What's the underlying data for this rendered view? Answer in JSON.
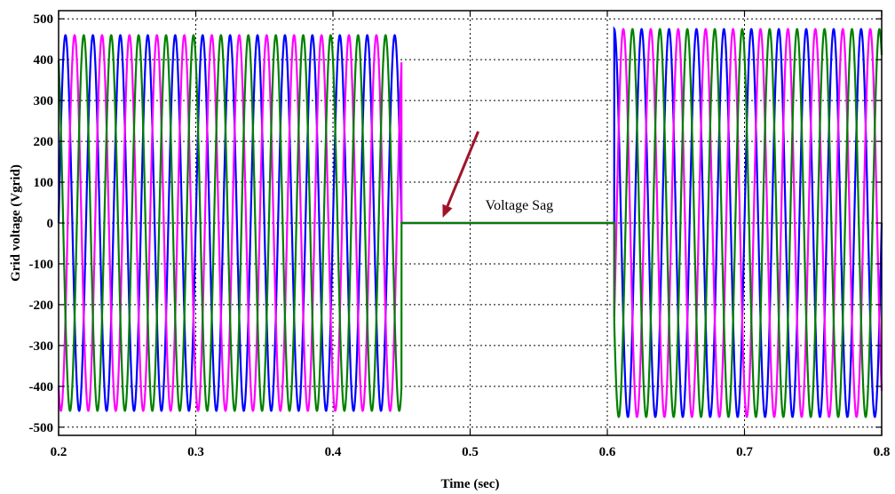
{
  "chart_data": {
    "type": "line",
    "title": "",
    "xlabel": "Time (sec)",
    "ylabel": "Grid voltage (Vgrid)",
    "xlim": [
      0.2,
      0.8
    ],
    "ylim": [
      -520,
      520
    ],
    "xticks": [
      0.2,
      0.3,
      0.4,
      0.5,
      0.6,
      0.7,
      0.8
    ],
    "yticks": [
      500,
      400,
      300,
      200,
      100,
      0,
      -100,
      -200,
      -300,
      -400,
      -500
    ],
    "grid": true,
    "frequency_hz": 50,
    "annotation": {
      "text": "Voltage Sag",
      "x": 0.48,
      "y": 0
    },
    "series": [
      {
        "color": "#0000ff",
        "phase_deg": 0,
        "segments": [
          {
            "t_start": 0.2,
            "t_end": 0.45,
            "amplitude": 460
          },
          {
            "t_start": 0.45,
            "t_end": 0.605,
            "amplitude": 0
          },
          {
            "t_start": 0.605,
            "t_end": 0.8,
            "amplitude": 475
          }
        ]
      },
      {
        "color": "#ff00ff",
        "phase_deg": 120,
        "segments": [
          {
            "t_start": 0.2,
            "t_end": 0.45,
            "amplitude": 460
          },
          {
            "t_start": 0.45,
            "t_end": 0.605,
            "amplitude": 0
          },
          {
            "t_start": 0.605,
            "t_end": 0.8,
            "amplitude": 475
          }
        ]
      },
      {
        "color": "#008000",
        "phase_deg": 240,
        "segments": [
          {
            "t_start": 0.2,
            "t_end": 0.45,
            "amplitude": 460
          },
          {
            "t_start": 0.45,
            "t_end": 0.605,
            "amplitude": 0
          },
          {
            "t_start": 0.605,
            "t_end": 0.8,
            "amplitude": 475
          }
        ]
      }
    ],
    "arrow_color": "#a0142a"
  }
}
